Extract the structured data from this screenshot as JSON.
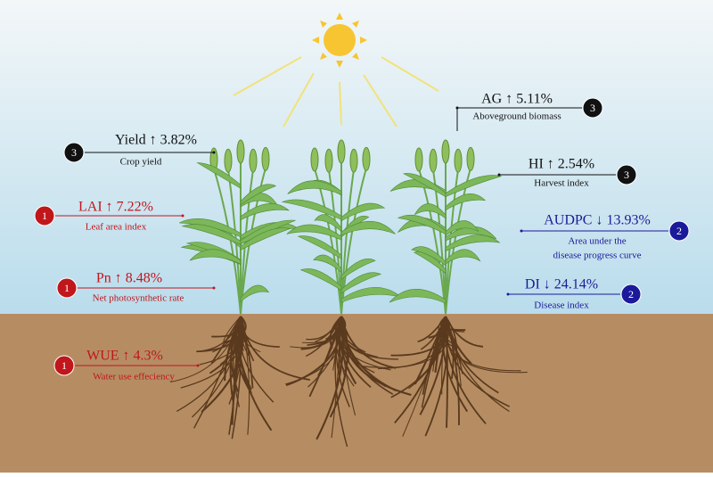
{
  "labels": [
    {
      "heading": "Yield ↑ 3.82%",
      "subtitle": [
        "Crop yield"
      ],
      "badge": "3"
    },
    {
      "heading": "LAI ↑ 7.22%",
      "subtitle": [
        "Leaf area index"
      ],
      "badge": "1"
    },
    {
      "heading": "Pn ↑ 8.48%",
      "subtitle": [
        "Net photosynthetic rate"
      ],
      "badge": "1"
    },
    {
      "heading": "WUE ↑ 4.3%",
      "subtitle": [
        "Water use effeciency"
      ],
      "badge": "1"
    },
    {
      "heading": "AG ↑ 5.11%",
      "subtitle": [
        "Aboveground biomass"
      ],
      "badge": "3"
    },
    {
      "heading": "HI ↑ 2.54%",
      "subtitle": [
        "Harvest index"
      ],
      "badge": "3"
    },
    {
      "heading": "AUDPC ↓ 13.93%",
      "subtitle": [
        "Area under the",
        "disease progress curve"
      ],
      "badge": "2"
    },
    {
      "heading": "DI ↓ 24.14%",
      "subtitle": [
        "Disease index"
      ],
      "badge": "2"
    }
  ]
}
